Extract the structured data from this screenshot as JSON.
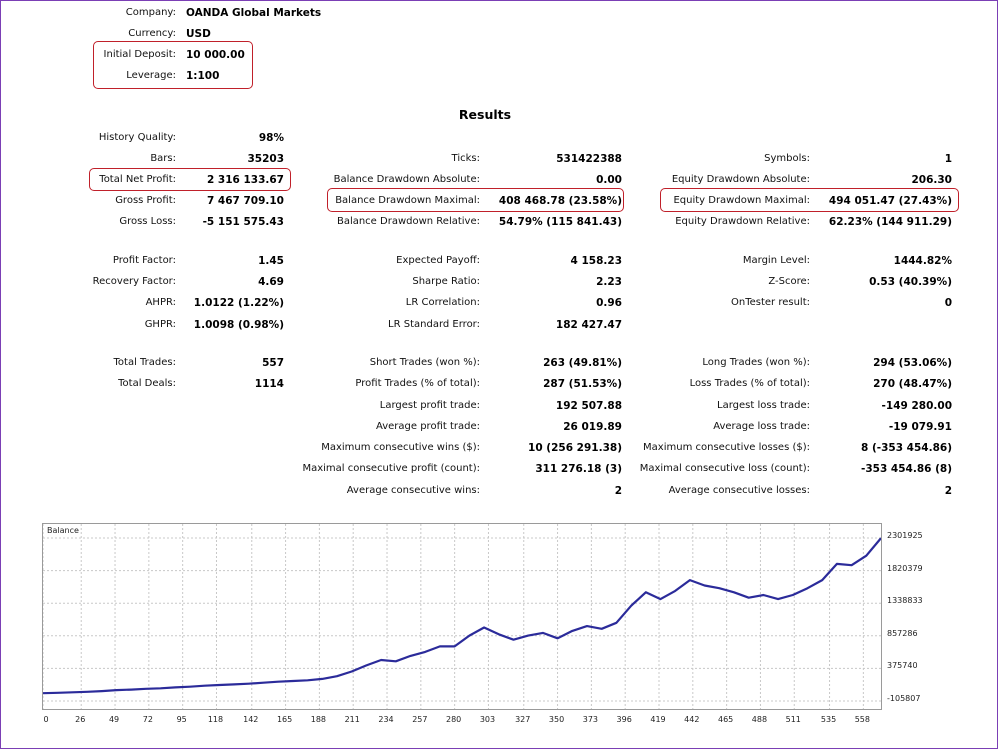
{
  "header": {
    "company_label": "Company:",
    "company": "OANDA Global Markets",
    "currency_label": "Currency:",
    "currency": "USD",
    "deposit_label": "Initial Deposit:",
    "deposit": "10 000.00",
    "leverage_label": "Leverage:",
    "leverage": "1:100"
  },
  "results_title": "Results",
  "col1": [
    {
      "label": "History Quality:",
      "value": "98%"
    },
    {
      "label": "Bars:",
      "value": "35203"
    },
    {
      "label": "Total Net Profit:",
      "value": "2 316 133.67"
    },
    {
      "label": "Gross Profit:",
      "value": "7 467 709.10"
    },
    {
      "label": "Gross Loss:",
      "value": "-5 151 575.43"
    },
    {
      "label": "Profit Factor:",
      "value": "1.45"
    },
    {
      "label": "Recovery Factor:",
      "value": "4.69"
    },
    {
      "label": "AHPR:",
      "value": "1.0122 (1.22%)"
    },
    {
      "label": "GHPR:",
      "value": "1.0098 (0.98%)"
    },
    {
      "label": "Total Trades:",
      "value": "557"
    },
    {
      "label": "Total Deals:",
      "value": "1114"
    }
  ],
  "col2": [
    {
      "label": "Ticks:",
      "value": "531422388"
    },
    {
      "label": "Balance Drawdown Absolute:",
      "value": "0.00"
    },
    {
      "label": "Balance Drawdown Maximal:",
      "value": "408 468.78 (23.58%)"
    },
    {
      "label": "Balance Drawdown Relative:",
      "value": "54.79% (115 841.43)"
    },
    {
      "label": "Expected Payoff:",
      "value": "4 158.23"
    },
    {
      "label": "Sharpe Ratio:",
      "value": "2.23"
    },
    {
      "label": "LR Correlation:",
      "value": "0.96"
    },
    {
      "label": "LR Standard Error:",
      "value": "182 427.47"
    },
    {
      "label": "Short Trades (won %):",
      "value": "263 (49.81%)"
    },
    {
      "label": "Profit Trades (% of total):",
      "value": "287 (51.53%)"
    },
    {
      "label": "Largest profit trade:",
      "value": "192 507.88"
    },
    {
      "label": "Average profit trade:",
      "value": "26 019.89"
    },
    {
      "label": "Maximum consecutive wins ($):",
      "value": "10 (256 291.38)"
    },
    {
      "label": "Maximal consecutive profit (count):",
      "value": "311 276.18 (3)"
    },
    {
      "label": "Average consecutive wins:",
      "value": "2"
    }
  ],
  "col3": [
    {
      "label": "Symbols:",
      "value": "1"
    },
    {
      "label": "Equity Drawdown Absolute:",
      "value": "206.30"
    },
    {
      "label": "Equity Drawdown Maximal:",
      "value": "494 051.47 (27.43%)"
    },
    {
      "label": "Equity Drawdown Relative:",
      "value": "62.23% (144 911.29)"
    },
    {
      "label": "Margin Level:",
      "value": "1444.82%"
    },
    {
      "label": "Z-Score:",
      "value": "0.53 (40.39%)"
    },
    {
      "label": "OnTester result:",
      "value": "0"
    },
    {
      "label": "Long Trades (won %):",
      "value": "294 (53.06%)"
    },
    {
      "label": "Loss Trades (% of total):",
      "value": "270 (48.47%)"
    },
    {
      "label": "Largest loss trade:",
      "value": "-149 280.00"
    },
    {
      "label": "Average loss trade:",
      "value": "-19 079.91"
    },
    {
      "label": "Maximum consecutive losses ($):",
      "value": "8 (-353 454.86)"
    },
    {
      "label": "Maximal consecutive loss (count):",
      "value": "-353 454.86 (8)"
    },
    {
      "label": "Average consecutive losses:",
      "value": "2"
    }
  ],
  "highlight_color": "#c0202a",
  "chart_data": {
    "type": "line",
    "title": "Balance",
    "line_color": "#2b2b9a",
    "grid": true,
    "y_ticks": [
      "2301925",
      "1820379",
      "1338833",
      "857286",
      "375740",
      "-105807"
    ],
    "y_tick_values": [
      2301925,
      1820379,
      1338833,
      857286,
      375740,
      -105807
    ],
    "x_ticks": [
      "0",
      "26",
      "49",
      "72",
      "95",
      "118",
      "142",
      "165",
      "188",
      "211",
      "234",
      "257",
      "280",
      "303",
      "327",
      "350",
      "373",
      "396",
      "419",
      "442",
      "465",
      "488",
      "511",
      "535",
      "558"
    ],
    "xlim": [
      0,
      570
    ],
    "ylim": [
      -105807,
      2301925
    ],
    "x": [
      0,
      10,
      20,
      30,
      40,
      50,
      60,
      70,
      80,
      90,
      100,
      110,
      120,
      130,
      140,
      150,
      160,
      170,
      180,
      190,
      200,
      210,
      220,
      230,
      240,
      250,
      260,
      270,
      280,
      290,
      300,
      310,
      320,
      330,
      340,
      350,
      360,
      370,
      380,
      390,
      400,
      410,
      420,
      430,
      440,
      450,
      460,
      470,
      480,
      490,
      500,
      510,
      520,
      530,
      540,
      550,
      560,
      570
    ],
    "values": [
      10000,
      15000,
      22000,
      30000,
      40000,
      55000,
      62000,
      75000,
      82000,
      95000,
      105000,
      120000,
      130000,
      140000,
      150000,
      165000,
      180000,
      190000,
      200000,
      220000,
      260000,
      330000,
      420000,
      500000,
      480000,
      560000,
      620000,
      700000,
      700000,
      860000,
      980000,
      880000,
      800000,
      860000,
      900000,
      820000,
      930000,
      1000000,
      960000,
      1050000,
      1300000,
      1500000,
      1400000,
      1520000,
      1680000,
      1600000,
      1560000,
      1500000,
      1420000,
      1460000,
      1400000,
      1460000,
      1560000,
      1680000,
      1920000,
      1900000,
      2040000,
      2300000
    ]
  }
}
